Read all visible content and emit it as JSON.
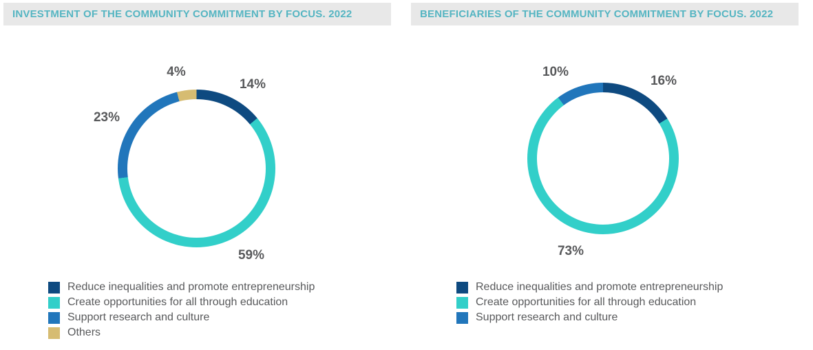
{
  "styles": {
    "header_bg": "#E8E8E8",
    "header_text_color": "#55B5C2",
    "data_label_color": "#58595B",
    "legend_text_color": "#58595B",
    "background": "#FFFFFF"
  },
  "charts": [
    {
      "title": "INVESTMENT OF THE COMMUNITY COMMITMENT BY FOCUS. 2022",
      "chart_data": {
        "type": "pie",
        "subtype": "donut",
        "start_angle": "top",
        "direction": "clockwise",
        "unit": "%",
        "categories": [
          "Reduce inequalities and promote entrepreneurship",
          "Create opportunities for all through education",
          "Support research and culture",
          "Others"
        ],
        "values": [
          14,
          59,
          23,
          4
        ],
        "colors": [
          "#0E4A80",
          "#32CFC9",
          "#2176BB",
          "#D6BC72"
        ],
        "data_labels": [
          "14%",
          "59%",
          "23%",
          "4%"
        ],
        "legend_position": "bottom-left"
      }
    },
    {
      "title": "BENEFICIARIES OF THE COMMUNITY COMMITMENT BY FOCUS. 2022",
      "chart_data": {
        "type": "pie",
        "subtype": "donut",
        "start_angle": "top",
        "direction": "clockwise",
        "unit": "%",
        "categories": [
          "Reduce inequalities and promote entrepreneurship",
          "Create opportunities for all through education",
          "Support research and culture"
        ],
        "values": [
          16,
          73,
          10
        ],
        "colors": [
          "#0E4A80",
          "#32CFC9",
          "#2176BB"
        ],
        "data_labels": [
          "16%",
          "73%",
          "10%"
        ],
        "legend_position": "bottom-left"
      }
    }
  ]
}
